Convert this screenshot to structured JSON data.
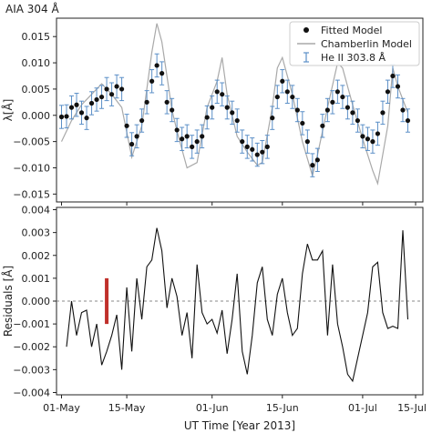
{
  "figure_title": "AIA 304 Å",
  "colors": {
    "fitted": "#111111",
    "chamberlin": "#a9a9a9",
    "errorbar": "#5b8fc7",
    "residual_line": "#111111",
    "zero_line": "#888888",
    "residual_bar": "#c0302b"
  },
  "chart_data": [
    {
      "type": "scatter",
      "ylabel": "λ[Å]",
      "xlim": [
        0,
        73
      ],
      "ylim": [
        -0.0165,
        0.0185
      ],
      "yticks": [
        -0.015,
        -0.01,
        -0.005,
        0.0,
        0.005,
        0.01,
        0.015
      ],
      "ytick_labels": [
        "−0.015",
        "−0.010",
        "−0.005",
        "0.000",
        "0.005",
        "0.010",
        "0.015"
      ],
      "legend_position": "top-right",
      "legend": [
        {
          "label": "Fitted Model",
          "marker": "dot"
        },
        {
          "label": "Chamberlin Model",
          "marker": "line"
        },
        {
          "label": "He II 303.8 Å",
          "marker": "errorbar"
        }
      ],
      "series": [
        {
          "name": "Fitted Model",
          "x": [
            1,
            2,
            3,
            4,
            5,
            6,
            7,
            8,
            9,
            10,
            11,
            12,
            13,
            14,
            15,
            16,
            17,
            18,
            19,
            20,
            21,
            22,
            23,
            24,
            25,
            26,
            27,
            28,
            29,
            30,
            31,
            32,
            33,
            34,
            35,
            36,
            37,
            38,
            39,
            40,
            41,
            42,
            43,
            44,
            45,
            46,
            47,
            48,
            49,
            50,
            51,
            52,
            53,
            54,
            55,
            56,
            57,
            58,
            59,
            60,
            61,
            62,
            63,
            64,
            65,
            66,
            67,
            68,
            69,
            70
          ],
          "y": [
            -0.0003,
            -0.0002,
            0.0015,
            0.002,
            0.0005,
            -0.0005,
            0.0023,
            0.003,
            0.0035,
            0.005,
            0.004,
            0.0055,
            0.005,
            -0.002,
            -0.0055,
            -0.004,
            -0.001,
            0.0025,
            0.0065,
            0.0095,
            0.008,
            0.0025,
            0.001,
            -0.0028,
            -0.0045,
            -0.004,
            -0.006,
            -0.005,
            -0.004,
            -0.0004,
            0.0015,
            0.0045,
            0.004,
            0.0015,
            0.0005,
            -0.001,
            -0.005,
            -0.006,
            -0.0065,
            -0.0075,
            -0.007,
            -0.006,
            -0.0005,
            0.0035,
            0.0065,
            0.0045,
            0.0035,
            0.001,
            -0.0015,
            -0.005,
            -0.0095,
            -0.0085,
            -0.002,
            0.001,
            0.0025,
            0.0045,
            0.0035,
            0.0015,
            0.0005,
            -0.001,
            -0.004,
            -0.0045,
            -0.005,
            -0.0035,
            0.0005,
            0.0045,
            0.0075,
            0.0055,
            0.001,
            -0.001
          ],
          "yerr": [
            0.0022,
            0.0022,
            0.0022,
            0.0022,
            0.0022,
            0.0022,
            0.0022,
            0.0022,
            0.0022,
            0.0022,
            0.0022,
            0.0022,
            0.0022,
            0.0022,
            0.0022,
            0.0022,
            0.0022,
            0.0022,
            0.0022,
            0.0022,
            0.0022,
            0.0022,
            0.0022,
            0.0022,
            0.0022,
            0.0022,
            0.0022,
            0.0022,
            0.0022,
            0.0022,
            0.0022,
            0.0022,
            0.0022,
            0.0022,
            0.0022,
            0.0022,
            0.0022,
            0.0022,
            0.0022,
            0.0022,
            0.0022,
            0.0022,
            0.0022,
            0.0022,
            0.0022,
            0.0022,
            0.0022,
            0.0022,
            0.0022,
            0.0022,
            0.0022,
            0.0022,
            0.0022,
            0.0022,
            0.0022,
            0.0022,
            0.0022,
            0.0022,
            0.0022,
            0.0022,
            0.0022,
            0.0022,
            0.0022,
            0.0022,
            0.0022,
            0.0022,
            0.0022,
            0.0022,
            0.0022,
            0.0022
          ]
        },
        {
          "name": "Chamberlin Model",
          "x": [
            1,
            3,
            5,
            7,
            9,
            11,
            13,
            15,
            17,
            19,
            20,
            21,
            23,
            24,
            26,
            28,
            30,
            32,
            33,
            34,
            36,
            38,
            40,
            41,
            43,
            44,
            45,
            47,
            49,
            51,
            52,
            54,
            56,
            57,
            59,
            61,
            63,
            64,
            66,
            67,
            68,
            70
          ],
          "y": [
            -0.005,
            -0.001,
            0.002,
            0.004,
            0.006,
            0.004,
            0.0015,
            -0.008,
            -0.002,
            0.012,
            0.0175,
            0.014,
            0.001,
            -0.003,
            -0.01,
            -0.009,
            0.0015,
            0.0065,
            0.011,
            0.004,
            -0.004,
            -0.007,
            -0.0095,
            -0.009,
            0.0015,
            0.009,
            0.011,
            0.004,
            -0.005,
            -0.0115,
            -0.0075,
            0.0015,
            0.01,
            0.009,
            0.002,
            -0.0045,
            -0.0105,
            -0.013,
            -0.002,
            0.009,
            0.0055,
            0.0005
          ]
        }
      ]
    },
    {
      "type": "line",
      "xlabel": "UT Time [Year 2013]",
      "ylabel": "Residuals [Å]",
      "xlim": [
        0,
        73
      ],
      "ylim": [
        -0.0041,
        0.0041
      ],
      "yticks": [
        -0.004,
        -0.003,
        -0.002,
        -0.001,
        0.0,
        0.001,
        0.002,
        0.003,
        0.004
      ],
      "ytick_labels": [
        "−0.004",
        "−0.003",
        "−0.002",
        "−0.001",
        "0.000",
        "0.001",
        "0.002",
        "0.003",
        "0.004"
      ],
      "xticks": [
        1,
        14,
        31,
        45,
        61,
        75
      ],
      "xtick_labels": [
        "01-May",
        "15-May",
        "01-Jun",
        "15-Jun",
        "01-Jul",
        "15-Jul"
      ],
      "series": [
        {
          "name": "Residuals",
          "x": [
            2,
            3,
            4,
            5,
            6,
            7,
            8,
            9,
            10,
            11,
            12,
            13,
            14,
            15,
            16,
            17,
            18,
            19,
            20,
            21,
            22,
            23,
            24,
            25,
            26,
            27,
            28,
            29,
            30,
            31,
            32,
            33,
            34,
            35,
            36,
            37,
            38,
            39,
            40,
            41,
            42,
            43,
            44,
            45,
            46,
            47,
            48,
            49,
            50,
            51,
            52,
            53,
            54,
            55,
            56,
            57,
            58,
            59,
            60,
            61,
            62,
            63,
            64,
            65,
            66,
            67,
            68,
            69,
            70
          ],
          "y": [
            -0.002,
            0.0,
            -0.0015,
            -0.0005,
            -0.0004,
            -0.002,
            -0.001,
            -0.0028,
            -0.0022,
            -0.0015,
            -0.0006,
            -0.003,
            0.0006,
            -0.0022,
            0.001,
            -0.0008,
            0.0015,
            0.0018,
            0.0032,
            0.0022,
            -0.0003,
            0.001,
            0.0002,
            -0.0015,
            -0.0005,
            -0.0025,
            0.0016,
            -0.0005,
            -0.001,
            -0.0008,
            -0.0014,
            -0.0004,
            -0.0023,
            -0.0008,
            0.0012,
            -0.0022,
            -0.0032,
            -0.0015,
            0.0008,
            0.0015,
            -0.0008,
            -0.0015,
            0.0003,
            0.001,
            -0.0005,
            -0.0015,
            -0.0012,
            0.0012,
            0.0025,
            0.0018,
            0.0018,
            0.0022,
            -0.0015,
            0.0016,
            -0.001,
            -0.002,
            -0.0032,
            -0.0035,
            -0.0025,
            -0.0015,
            -0.0005,
            0.0015,
            0.0017,
            -0.0005,
            -0.0012,
            -0.0011,
            -0.0012,
            0.0031,
            -0.0008
          ]
        }
      ],
      "annotations": [
        {
          "type": "bar",
          "x": 10,
          "y_low": -0.001,
          "y_high": 0.001
        }
      ]
    }
  ]
}
